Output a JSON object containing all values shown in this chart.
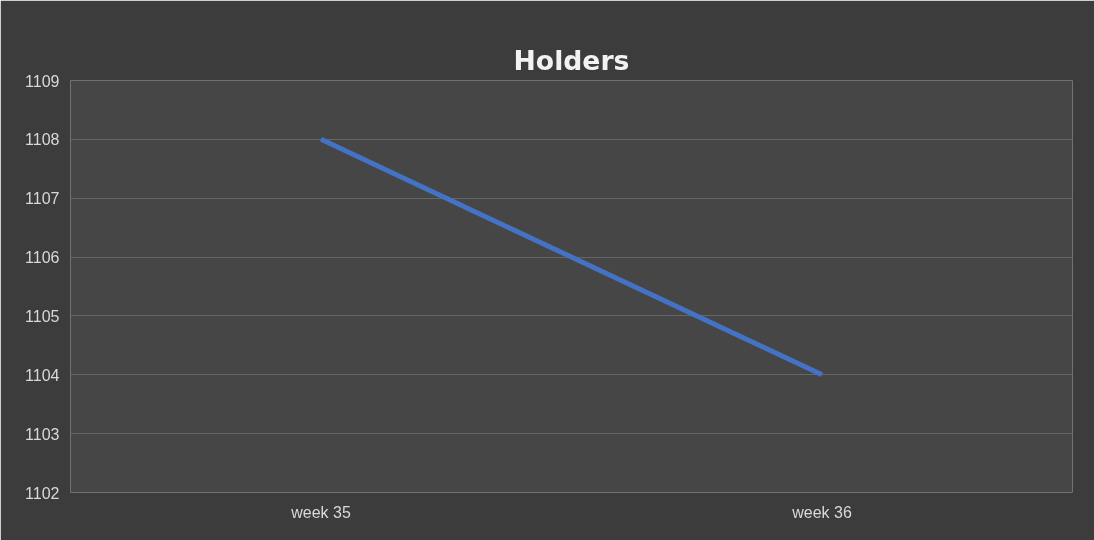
{
  "chart_data": {
    "type": "line",
    "title": "Holders",
    "categories": [
      "week 35",
      "week 36"
    ],
    "series": [
      {
        "color": "#4472c4",
        "values": [
          1108,
          1104
        ]
      }
    ],
    "ylim": [
      1102,
      1109
    ],
    "yticks": [
      1102,
      1103,
      1104,
      1105,
      1106,
      1107,
      1108,
      1109
    ],
    "grid": "y",
    "marker": "none",
    "line_style": "solid"
  }
}
